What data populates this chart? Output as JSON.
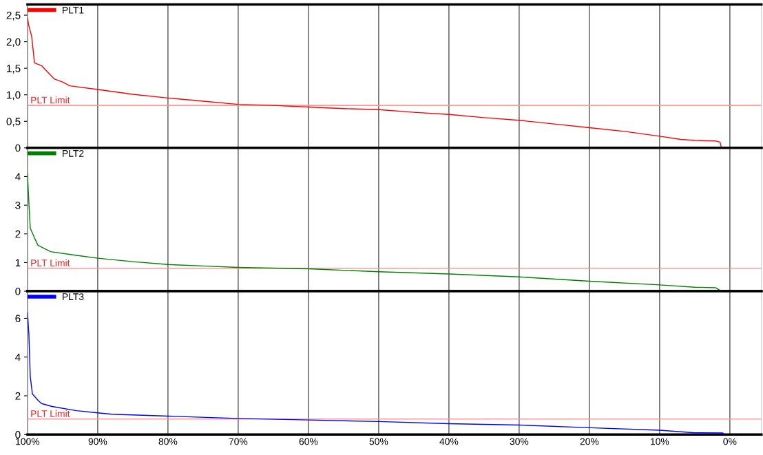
{
  "chart_data": [
    {
      "type": "line",
      "xlim": [
        100,
        -4.5
      ],
      "xticks": [
        100,
        90,
        80,
        70,
        60,
        50,
        40,
        30,
        20,
        10,
        0
      ],
      "ylim": [
        0,
        2.7
      ],
      "yticks": [
        0,
        {
          "value": 0.5,
          "label": "0,5"
        },
        {
          "value": 1,
          "label": "1,0"
        },
        {
          "value": 1.5,
          "label": "1,5"
        },
        {
          "value": 2,
          "label": "2,0"
        },
        {
          "value": 2.5,
          "label": "2,5"
        }
      ],
      "tick_labels": "y",
      "grid": "x",
      "legend": "top left",
      "ref_lines": [
        {
          "axis": "y",
          "value": 0.8,
          "label": "PLT Limit",
          "color": "#ff9999"
        }
      ],
      "series": [
        {
          "name": "PLT1",
          "color": "#ff0000",
          "x": [
            100,
            99.8,
            99.4,
            99.2,
            99,
            98,
            97.5,
            96.2,
            95,
            94,
            90,
            85,
            80,
            75,
            70,
            65,
            60,
            55,
            50,
            45,
            40,
            35,
            30,
            25,
            20,
            15,
            10,
            7,
            5,
            2,
            1.4,
            1.2
          ],
          "values": [
            2.44,
            2.3,
            2.1,
            1.85,
            1.6,
            1.55,
            1.48,
            1.3,
            1.24,
            1.17,
            1.1,
            1.01,
            0.94,
            0.88,
            0.82,
            0.8,
            0.77,
            0.74,
            0.72,
            0.67,
            0.63,
            0.57,
            0.52,
            0.45,
            0.38,
            0.31,
            0.22,
            0.16,
            0.14,
            0.13,
            0.11,
            0
          ]
        }
      ]
    },
    {
      "type": "line",
      "xlim": [
        100,
        -4.5
      ],
      "xticks": [
        100,
        90,
        80,
        70,
        60,
        50,
        40,
        30,
        20,
        10,
        0
      ],
      "ylim": [
        0,
        5
      ],
      "yticks": [
        0,
        1,
        2,
        3,
        4
      ],
      "tick_labels": "y",
      "grid": "x",
      "legend": "top left",
      "ref_lines": [
        {
          "axis": "y",
          "value": 0.8,
          "label": "PLT Limit",
          "color": "#ff9999"
        }
      ],
      "series": [
        {
          "name": "PLT2",
          "color": "#008000",
          "x": [
            100,
            99.8,
            99.6,
            99,
            98.5,
            96.7,
            93,
            90,
            85,
            80,
            75,
            70,
            60,
            50,
            40,
            30,
            20,
            10,
            5,
            2,
            1.2
          ],
          "values": [
            4.1,
            3.1,
            2.2,
            1.86,
            1.6,
            1.38,
            1.25,
            1.15,
            1.03,
            0.93,
            0.88,
            0.83,
            0.78,
            0.68,
            0.6,
            0.5,
            0.35,
            0.22,
            0.14,
            0.12,
            0
          ]
        }
      ]
    },
    {
      "type": "line",
      "xlim": [
        100,
        -4.5
      ],
      "xticks": [
        {
          "value": 100,
          "label": "100%"
        },
        {
          "value": 90,
          "label": "90%"
        },
        {
          "value": 80,
          "label": "80%"
        },
        {
          "value": 70,
          "label": "70%"
        },
        {
          "value": 60,
          "label": "60%"
        },
        {
          "value": 50,
          "label": "50%"
        },
        {
          "value": 40,
          "label": "40%"
        },
        {
          "value": 30,
          "label": "30%"
        },
        {
          "value": 20,
          "label": "20%"
        },
        {
          "value": 10,
          "label": "10%"
        },
        {
          "value": 0,
          "label": "0%"
        }
      ],
      "ylim": [
        0,
        7.4
      ],
      "yticks": [
        0,
        2,
        4,
        6
      ],
      "grid": "x",
      "legend": "top left",
      "ref_lines": [
        {
          "axis": "y",
          "value": 0.8,
          "label": "PLT Limit",
          "color": "#ff9999"
        }
      ],
      "series": [
        {
          "name": "PLT3",
          "color": "#0000ff",
          "x": [
            100,
            99.8,
            99.6,
            99.5,
            99.3,
            98.5,
            98,
            96.5,
            93,
            90,
            88,
            80,
            70,
            60,
            50,
            40,
            30,
            20,
            10,
            5,
            1,
            0.8
          ],
          "values": [
            6.3,
            5.2,
            3.0,
            2.7,
            2.1,
            1.77,
            1.6,
            1.45,
            1.23,
            1.12,
            1.05,
            0.95,
            0.83,
            0.75,
            0.67,
            0.56,
            0.49,
            0.35,
            0.22,
            0.09,
            0.08,
            0
          ]
        }
      ]
    }
  ]
}
